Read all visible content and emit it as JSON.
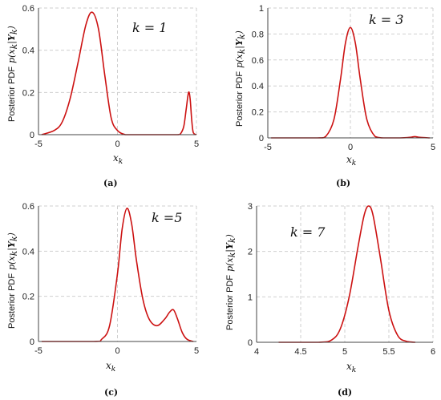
{
  "chart_data": [
    {
      "type": "line",
      "panel_caption": "(a)",
      "annotation": "k = 1",
      "xlabel": "x_k",
      "ylabel_text": "Posterior PDF",
      "ylabel_math": "p(x_k|Y_k)",
      "xlim": [
        -5,
        5
      ],
      "ylim": [
        0,
        0.6
      ],
      "xticks": [
        -5,
        0,
        5
      ],
      "yticks": [
        0,
        0.2,
        0.4,
        0.6
      ],
      "grid": true,
      "color": "#cc1111",
      "x": [
        -4.8,
        -4.0,
        -3.5,
        -3.0,
        -2.5,
        -2.0,
        -1.6,
        -1.2,
        -0.8,
        -0.4,
        0.0,
        0.5,
        1.0,
        2.0,
        3.0,
        3.8,
        4.0,
        4.2,
        4.35,
        4.5,
        4.6,
        4.7,
        4.8,
        5.0
      ],
      "y": [
        0.0,
        0.02,
        0.06,
        0.17,
        0.34,
        0.52,
        0.58,
        0.5,
        0.28,
        0.08,
        0.02,
        0.0,
        0.0,
        0.0,
        0.0,
        0.0,
        0.005,
        0.04,
        0.12,
        0.2,
        0.17,
        0.07,
        0.01,
        0.0
      ]
    },
    {
      "type": "line",
      "panel_caption": "(b)",
      "annotation": "k = 3",
      "xlabel": "x_k",
      "ylabel_text": "Posterior PDF",
      "ylabel_math": "p(x_k|Y_k)",
      "xlim": [
        -5,
        5
      ],
      "ylim": [
        0,
        1
      ],
      "xticks": [
        -5,
        0,
        5
      ],
      "yticks": [
        0,
        0.2,
        0.4,
        0.6,
        0.8,
        1
      ],
      "grid": true,
      "color": "#cc1111",
      "x": [
        -4.8,
        -2.0,
        -1.5,
        -1.0,
        -0.6,
        -0.3,
        0.0,
        0.3,
        0.6,
        1.0,
        1.5,
        2.0,
        3.0,
        3.6,
        3.9,
        4.2,
        4.8
      ],
      "y": [
        0.0,
        0.0,
        0.01,
        0.14,
        0.45,
        0.73,
        0.85,
        0.73,
        0.45,
        0.14,
        0.01,
        0.0,
        0.0,
        0.004,
        0.01,
        0.004,
        0.0
      ]
    },
    {
      "type": "line",
      "panel_caption": "(c)",
      "annotation": "k =5",
      "xlabel": "x_k",
      "ylabel_text": "Posterior PDF",
      "ylabel_math": "p(x_k|Y_k)",
      "xlim": [
        -5,
        5
      ],
      "ylim": [
        0,
        0.6
      ],
      "xticks": [
        -5,
        0,
        5
      ],
      "yticks": [
        0,
        0.2,
        0.4,
        0.6
      ],
      "grid": true,
      "color": "#cc1111",
      "x": [
        -4.8,
        -1.5,
        -1.0,
        -0.5,
        0.0,
        0.3,
        0.6,
        0.9,
        1.2,
        1.6,
        2.0,
        2.5,
        3.0,
        3.3,
        3.55,
        3.8,
        4.1,
        4.4,
        4.8
      ],
      "y": [
        0.0,
        0.0,
        0.01,
        0.07,
        0.3,
        0.5,
        0.59,
        0.52,
        0.36,
        0.19,
        0.1,
        0.07,
        0.1,
        0.13,
        0.14,
        0.1,
        0.04,
        0.01,
        0.0
      ]
    },
    {
      "type": "line",
      "panel_caption": "(d)",
      "annotation": "k = 7",
      "xlabel": "x_k",
      "ylabel_text": "Posterior PDF",
      "ylabel_math": "p(x_k|Y_k)",
      "xlim": [
        4,
        6
      ],
      "ylim": [
        0,
        3
      ],
      "xticks": [
        4,
        4.5,
        5,
        5.5,
        6
      ],
      "yticks": [
        0,
        1,
        2,
        3
      ],
      "grid": true,
      "color": "#cc1111",
      "x": [
        4.25,
        4.7,
        4.85,
        4.95,
        5.05,
        5.15,
        5.22,
        5.27,
        5.32,
        5.4,
        5.5,
        5.6,
        5.7,
        5.8
      ],
      "y": [
        0.0,
        0.0,
        0.05,
        0.3,
        1.0,
        2.1,
        2.8,
        3.0,
        2.8,
        1.9,
        0.7,
        0.15,
        0.02,
        0.0
      ]
    }
  ]
}
